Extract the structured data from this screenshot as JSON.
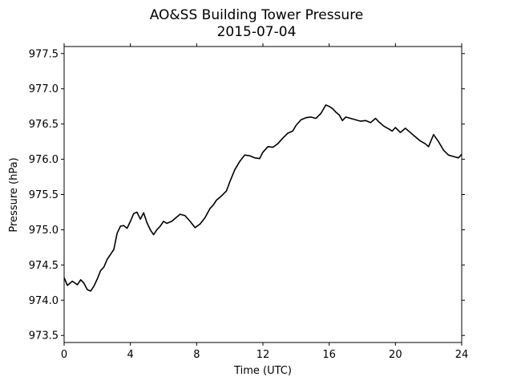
{
  "chart_data": {
    "type": "line",
    "title": "AO&SS Building Tower Pressure",
    "subtitle": "2015-07-04",
    "xlabel": "Time (UTC)",
    "ylabel": "Pressure (hPa)",
    "xlim": [
      0,
      24
    ],
    "ylim": [
      973.4,
      977.6
    ],
    "xticks": [
      0,
      4,
      8,
      12,
      16,
      20,
      24
    ],
    "yticks": [
      973.5,
      974.0,
      974.5,
      975.0,
      975.5,
      976.0,
      976.5,
      977.0,
      977.5
    ],
    "ytick_labels": [
      "973.5",
      "974.0",
      "974.5",
      "975.0",
      "975.5",
      "976.0",
      "976.5",
      "977.0",
      "977.5"
    ],
    "grid": false,
    "series": [
      {
        "color": "#000000",
        "x": [
          0,
          0.2,
          0.5,
          0.8,
          1.0,
          1.2,
          1.4,
          1.6,
          1.8,
          2.0,
          2.2,
          2.4,
          2.6,
          2.8,
          3.0,
          3.2,
          3.4,
          3.6,
          3.8,
          4.0,
          4.2,
          4.4,
          4.6,
          4.8,
          5.0,
          5.2,
          5.4,
          5.6,
          5.8,
          6.0,
          6.2,
          6.5,
          6.8,
          7.0,
          7.3,
          7.6,
          7.9,
          8.2,
          8.5,
          8.8,
          9.0,
          9.2,
          9.5,
          9.8,
          10.0,
          10.3,
          10.6,
          10.9,
          11.2,
          11.5,
          11.8,
          12.0,
          12.3,
          12.6,
          12.9,
          13.2,
          13.5,
          13.8,
          14.0,
          14.3,
          14.6,
          14.9,
          15.2,
          15.5,
          15.8,
          16.0,
          16.2,
          16.4,
          16.6,
          16.8,
          17.0,
          17.3,
          17.6,
          17.9,
          18.2,
          18.5,
          18.8,
          19.0,
          19.3,
          19.6,
          19.8,
          20.0,
          20.3,
          20.6,
          20.9,
          21.2,
          21.5,
          21.8,
          22.0,
          22.3,
          22.6,
          22.9,
          23.2,
          23.5,
          23.8,
          24.0
        ],
        "values": [
          974.32,
          974.21,
          974.27,
          974.22,
          974.29,
          974.24,
          974.15,
          974.13,
          974.2,
          974.3,
          974.42,
          974.47,
          974.58,
          974.65,
          974.72,
          974.95,
          975.05,
          975.06,
          975.02,
          975.12,
          975.23,
          975.25,
          975.15,
          975.24,
          975.1,
          975.0,
          974.93,
          975.0,
          975.05,
          975.12,
          975.09,
          975.12,
          975.18,
          975.22,
          975.2,
          975.12,
          975.03,
          975.08,
          975.17,
          975.3,
          975.35,
          975.42,
          975.48,
          975.55,
          975.68,
          975.85,
          975.97,
          976.06,
          976.05,
          976.02,
          976.01,
          976.1,
          976.18,
          976.17,
          976.22,
          976.3,
          976.37,
          976.4,
          976.48,
          976.56,
          976.59,
          976.6,
          976.58,
          976.65,
          976.77,
          976.75,
          976.72,
          976.67,
          976.63,
          976.55,
          976.6,
          976.58,
          976.56,
          976.54,
          976.55,
          976.52,
          976.58,
          976.53,
          976.47,
          976.43,
          976.4,
          976.45,
          976.38,
          976.44,
          976.38,
          976.32,
          976.26,
          976.22,
          976.18,
          976.35,
          976.25,
          976.13,
          976.06,
          976.04,
          976.02,
          976.07
        ]
      }
    ]
  }
}
